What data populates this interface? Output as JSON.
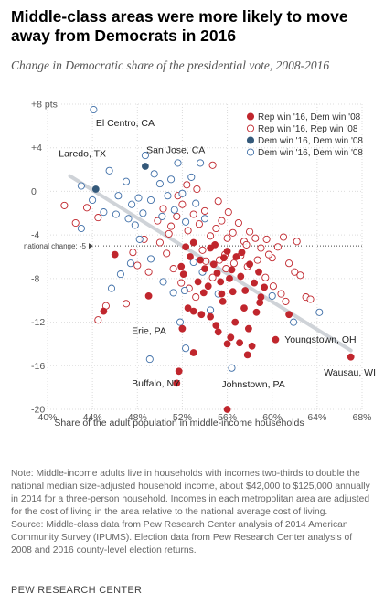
{
  "title": "Middle-class areas were more likely to move away from Democrats in 2016",
  "subtitle": "Change in Democratic share of the presidential vote, 2008-2016",
  "note": "Note: Middle-income adults live in households with incomes two-thirds to double the national median size-adjusted household income, about $42,000 to $125,000 annually in 2014 for a three-person household. Incomes in each metropolitan area are adjusted for the cost of living in the area relative to the national average cost of living.",
  "source": "Source: Middle-class data from Pew Research Center analysis of 2014 American Community Survey (IPUMS). Election data from Pew Research Center analysis of 2008 and 2016 county-level election returns.",
  "brand": "PEW RESEARCH CENTER",
  "colors": {
    "rep_flip": "#c0262d",
    "rep_hold": "#c0262d",
    "dem_flip": "#34597a",
    "dem_hold": "#3f6fa8",
    "trend": "#cfd3d8"
  },
  "chart_data": {
    "type": "scatter",
    "xlabel": "Share of the adult population in middle-income households",
    "xlim": [
      40,
      68
    ],
    "ylim": [
      -20,
      8
    ],
    "x_ticks": [
      40,
      44,
      48,
      52,
      56,
      60,
      64,
      68
    ],
    "x_tick_labels": [
      "40%",
      "44%",
      "48%",
      "52%",
      "56%",
      "60%",
      "64%",
      "68%"
    ],
    "y_ticks": [
      8,
      4,
      0,
      -4,
      -8,
      -12,
      -16,
      -20
    ],
    "y_tick_labels": [
      "+8 pts",
      "+4",
      "0",
      "-4",
      "-8",
      "-12",
      "-16",
      "-20"
    ],
    "grid": true,
    "legend_position": "top-right",
    "reference_line": {
      "y": -5,
      "label": "national change: -5"
    },
    "trend_line": [
      [
        42,
        1.4
      ],
      [
        67,
        -14.6
      ]
    ],
    "series": [
      {
        "name": "Rep win '16, Dem win '08",
        "marker": "filled",
        "color": "#c0262d",
        "points": [
          [
            46,
            -5.8
          ],
          [
            45,
            -11
          ],
          [
            49,
            -9.6
          ],
          [
            52,
            -12.6
          ],
          [
            51.7,
            -16.5
          ],
          [
            51.5,
            -17.6
          ],
          [
            53,
            -14.8
          ],
          [
            52.5,
            -10.7
          ],
          [
            53,
            -11
          ],
          [
            53.7,
            -11.3
          ],
          [
            54.3,
            -8.7
          ],
          [
            54.5,
            -11.5
          ],
          [
            55,
            -12.3
          ],
          [
            55.5,
            -9.4
          ],
          [
            56,
            -14
          ],
          [
            56.3,
            -13.4
          ],
          [
            56,
            -20
          ],
          [
            56.7,
            -12
          ],
          [
            57.1,
            -13.9
          ],
          [
            57.5,
            -10.7
          ],
          [
            57.8,
            -15
          ],
          [
            58.2,
            -14.2
          ],
          [
            58.6,
            -11.1
          ],
          [
            59,
            -9.7
          ],
          [
            60.3,
            -13.6
          ],
          [
            61.5,
            -11.3
          ],
          [
            67,
            -15.2
          ],
          [
            52.3,
            -5.1
          ],
          [
            52.7,
            -6
          ],
          [
            53,
            -4.7
          ],
          [
            53.6,
            -6.3
          ],
          [
            54,
            -7.1
          ],
          [
            54.5,
            -5.2
          ],
          [
            54.8,
            -6.7
          ],
          [
            55.1,
            -7.5
          ],
          [
            55.4,
            -8.3
          ],
          [
            55.7,
            -6.1
          ],
          [
            56,
            -5.5
          ],
          [
            56.4,
            -7.2
          ],
          [
            56.8,
            -6
          ],
          [
            57.2,
            -7.8
          ],
          [
            57.6,
            -9.1
          ],
          [
            58,
            -6.7
          ],
          [
            58.4,
            -8.4
          ],
          [
            58.8,
            -7.4
          ],
          [
            59.3,
            -8.8
          ],
          [
            55.6,
            -10.1
          ],
          [
            56.5,
            -9.2
          ],
          [
            53.4,
            -8.3
          ],
          [
            54.9,
            -4.9
          ],
          [
            57.3,
            -5.6
          ],
          [
            52.1,
            -7.6
          ],
          [
            58.9,
            -10.2
          ],
          [
            55.2,
            -12.9
          ],
          [
            53.9,
            -9.3
          ],
          [
            56.2,
            -8.0
          ],
          [
            57.9,
            -12.6
          ],
          [
            51.9,
            -6.9
          ]
        ]
      },
      {
        "name": "Rep win '16, Rep win '08",
        "marker": "hollow",
        "color": "#c0262d",
        "points": [
          [
            41.5,
            -1.3
          ],
          [
            42.5,
            -2.9
          ],
          [
            43.5,
            -1.5
          ],
          [
            44.5,
            -2.4
          ],
          [
            45.2,
            -10.5
          ],
          [
            44.5,
            -11.8
          ],
          [
            47,
            -10.3
          ],
          [
            48,
            -6.8
          ],
          [
            49,
            -7.4
          ],
          [
            50,
            -4.7
          ],
          [
            50.6,
            -5.7
          ],
          [
            51,
            -3.2
          ],
          [
            51.5,
            -2.3
          ],
          [
            52,
            -1.2
          ],
          [
            52.5,
            -3.6
          ],
          [
            53,
            -2.1
          ],
          [
            53.5,
            -3
          ],
          [
            54,
            -1.8
          ],
          [
            54.5,
            -4.1
          ],
          [
            55,
            -3.4
          ],
          [
            55.5,
            -2.7
          ],
          [
            56,
            -4.3
          ],
          [
            56.5,
            -3.8
          ],
          [
            57,
            -2.9
          ],
          [
            57.5,
            -4.6
          ],
          [
            58,
            -3.7
          ],
          [
            58.5,
            -4.3
          ],
          [
            59,
            -5.2
          ],
          [
            59.5,
            -4.4
          ],
          [
            60,
            -6.1
          ],
          [
            60.5,
            -5.1
          ],
          [
            61,
            -4.2
          ],
          [
            61.5,
            -6.6
          ],
          [
            62,
            -7.4
          ],
          [
            62.5,
            -7.7
          ],
          [
            63,
            -9.7
          ],
          [
            63.4,
            -9.9
          ],
          [
            62.2,
            -4.6
          ],
          [
            51.2,
            -7.1
          ],
          [
            51.9,
            -8.4
          ],
          [
            52.6,
            -8.9
          ],
          [
            53.2,
            -9.7
          ],
          [
            54.1,
            -6.4
          ],
          [
            54.7,
            -7.9
          ],
          [
            55.3,
            -6.3
          ],
          [
            55.9,
            -7.1
          ],
          [
            56.6,
            -6.6
          ],
          [
            57.2,
            -5.9
          ],
          [
            57.8,
            -6.9
          ],
          [
            58.7,
            -6.3
          ],
          [
            59.4,
            -7.9
          ],
          [
            60.1,
            -8.7
          ],
          [
            60.8,
            -9.4
          ],
          [
            61.2,
            -10.1
          ],
          [
            50.3,
            -1.6
          ],
          [
            51.6,
            -0.4
          ],
          [
            52.4,
            0.6
          ],
          [
            53.3,
            0.2
          ],
          [
            54.7,
            2.4
          ],
          [
            50.8,
            -3.9
          ],
          [
            49.8,
            -2.7
          ],
          [
            48.6,
            -4.4
          ],
          [
            47.6,
            -5.6
          ],
          [
            53.8,
            -5.4
          ],
          [
            55.8,
            -5.8
          ],
          [
            57.7,
            -4.9
          ],
          [
            59.7,
            -5.8
          ],
          [
            56.1,
            -1.9
          ],
          [
            55.2,
            -0.9
          ]
        ]
      },
      {
        "name": "Dem win '16, Dem win '08",
        "marker": "filled",
        "color": "#34597a",
        "points": [
          [
            44.3,
            0.2
          ],
          [
            48.7,
            2.3
          ]
        ]
      },
      {
        "name": "Dem win '16, Dem win '08",
        "marker": "hollow",
        "color": "#3f6fa8",
        "points": [
          [
            43,
            0.5
          ],
          [
            44,
            -0.8
          ],
          [
            45,
            -1.9
          ],
          [
            45.5,
            1.9
          ],
          [
            46.3,
            -0.4
          ],
          [
            47,
            0.9
          ],
          [
            47.5,
            -1.2
          ],
          [
            47.2,
            -2.5
          ],
          [
            48.1,
            -0.6
          ],
          [
            48.5,
            -2
          ],
          [
            48.7,
            3.3
          ],
          [
            49.2,
            -0.8
          ],
          [
            49.5,
            1.6
          ],
          [
            50,
            0.7
          ],
          [
            50.2,
            -2.3
          ],
          [
            50.7,
            -0.4
          ],
          [
            51,
            1.1
          ],
          [
            51.3,
            -1.7
          ],
          [
            51.6,
            2.6
          ],
          [
            52,
            -0.2
          ],
          [
            52.3,
            -2.8
          ],
          [
            52.8,
            1.3
          ],
          [
            53.2,
            -1.1
          ],
          [
            53.6,
            2.6
          ],
          [
            54,
            -2.5
          ],
          [
            45.7,
            -8.9
          ],
          [
            46.5,
            -7.6
          ],
          [
            47.4,
            -6.6
          ],
          [
            48.2,
            -4.4
          ],
          [
            49.2,
            -6.2
          ],
          [
            50.3,
            -8.3
          ],
          [
            51.2,
            -9.3
          ],
          [
            51.8,
            -12
          ],
          [
            52.2,
            -9.1
          ],
          [
            53,
            -6.5
          ],
          [
            53.8,
            -7.4
          ],
          [
            54.5,
            -10.9
          ],
          [
            55.2,
            -9.4
          ],
          [
            52.3,
            -14.4
          ],
          [
            56.4,
            -16.2
          ],
          [
            60,
            -9.6
          ],
          [
            61.9,
            -12
          ],
          [
            64.2,
            -11.1
          ],
          [
            44.1,
            7.5
          ],
          [
            43,
            -3.4
          ],
          [
            46.1,
            -2.1
          ],
          [
            49.1,
            -15.4
          ],
          [
            47.8,
            -3.1
          ]
        ]
      }
    ],
    "annotations": [
      {
        "text": "El Centro, CA",
        "x": 44.3,
        "y": 6.0
      },
      {
        "text": "Laredo, TX",
        "x": 41.0,
        "y": 3.2
      },
      {
        "text": "San Jose, CA",
        "x": 48.8,
        "y": 3.5
      },
      {
        "text": "Erie, PA",
        "x": 47.5,
        "y": -13.1
      },
      {
        "text": "Buffalo, NY",
        "x": 47.5,
        "y": -17.9
      },
      {
        "text": "Johnstown, PA",
        "x": 55.5,
        "y": -18.0
      },
      {
        "text": "Youngstown, OH",
        "x": 61.1,
        "y": -13.9
      },
      {
        "text": "Wausau, WI",
        "x": 64.6,
        "y": -16.9
      }
    ]
  }
}
